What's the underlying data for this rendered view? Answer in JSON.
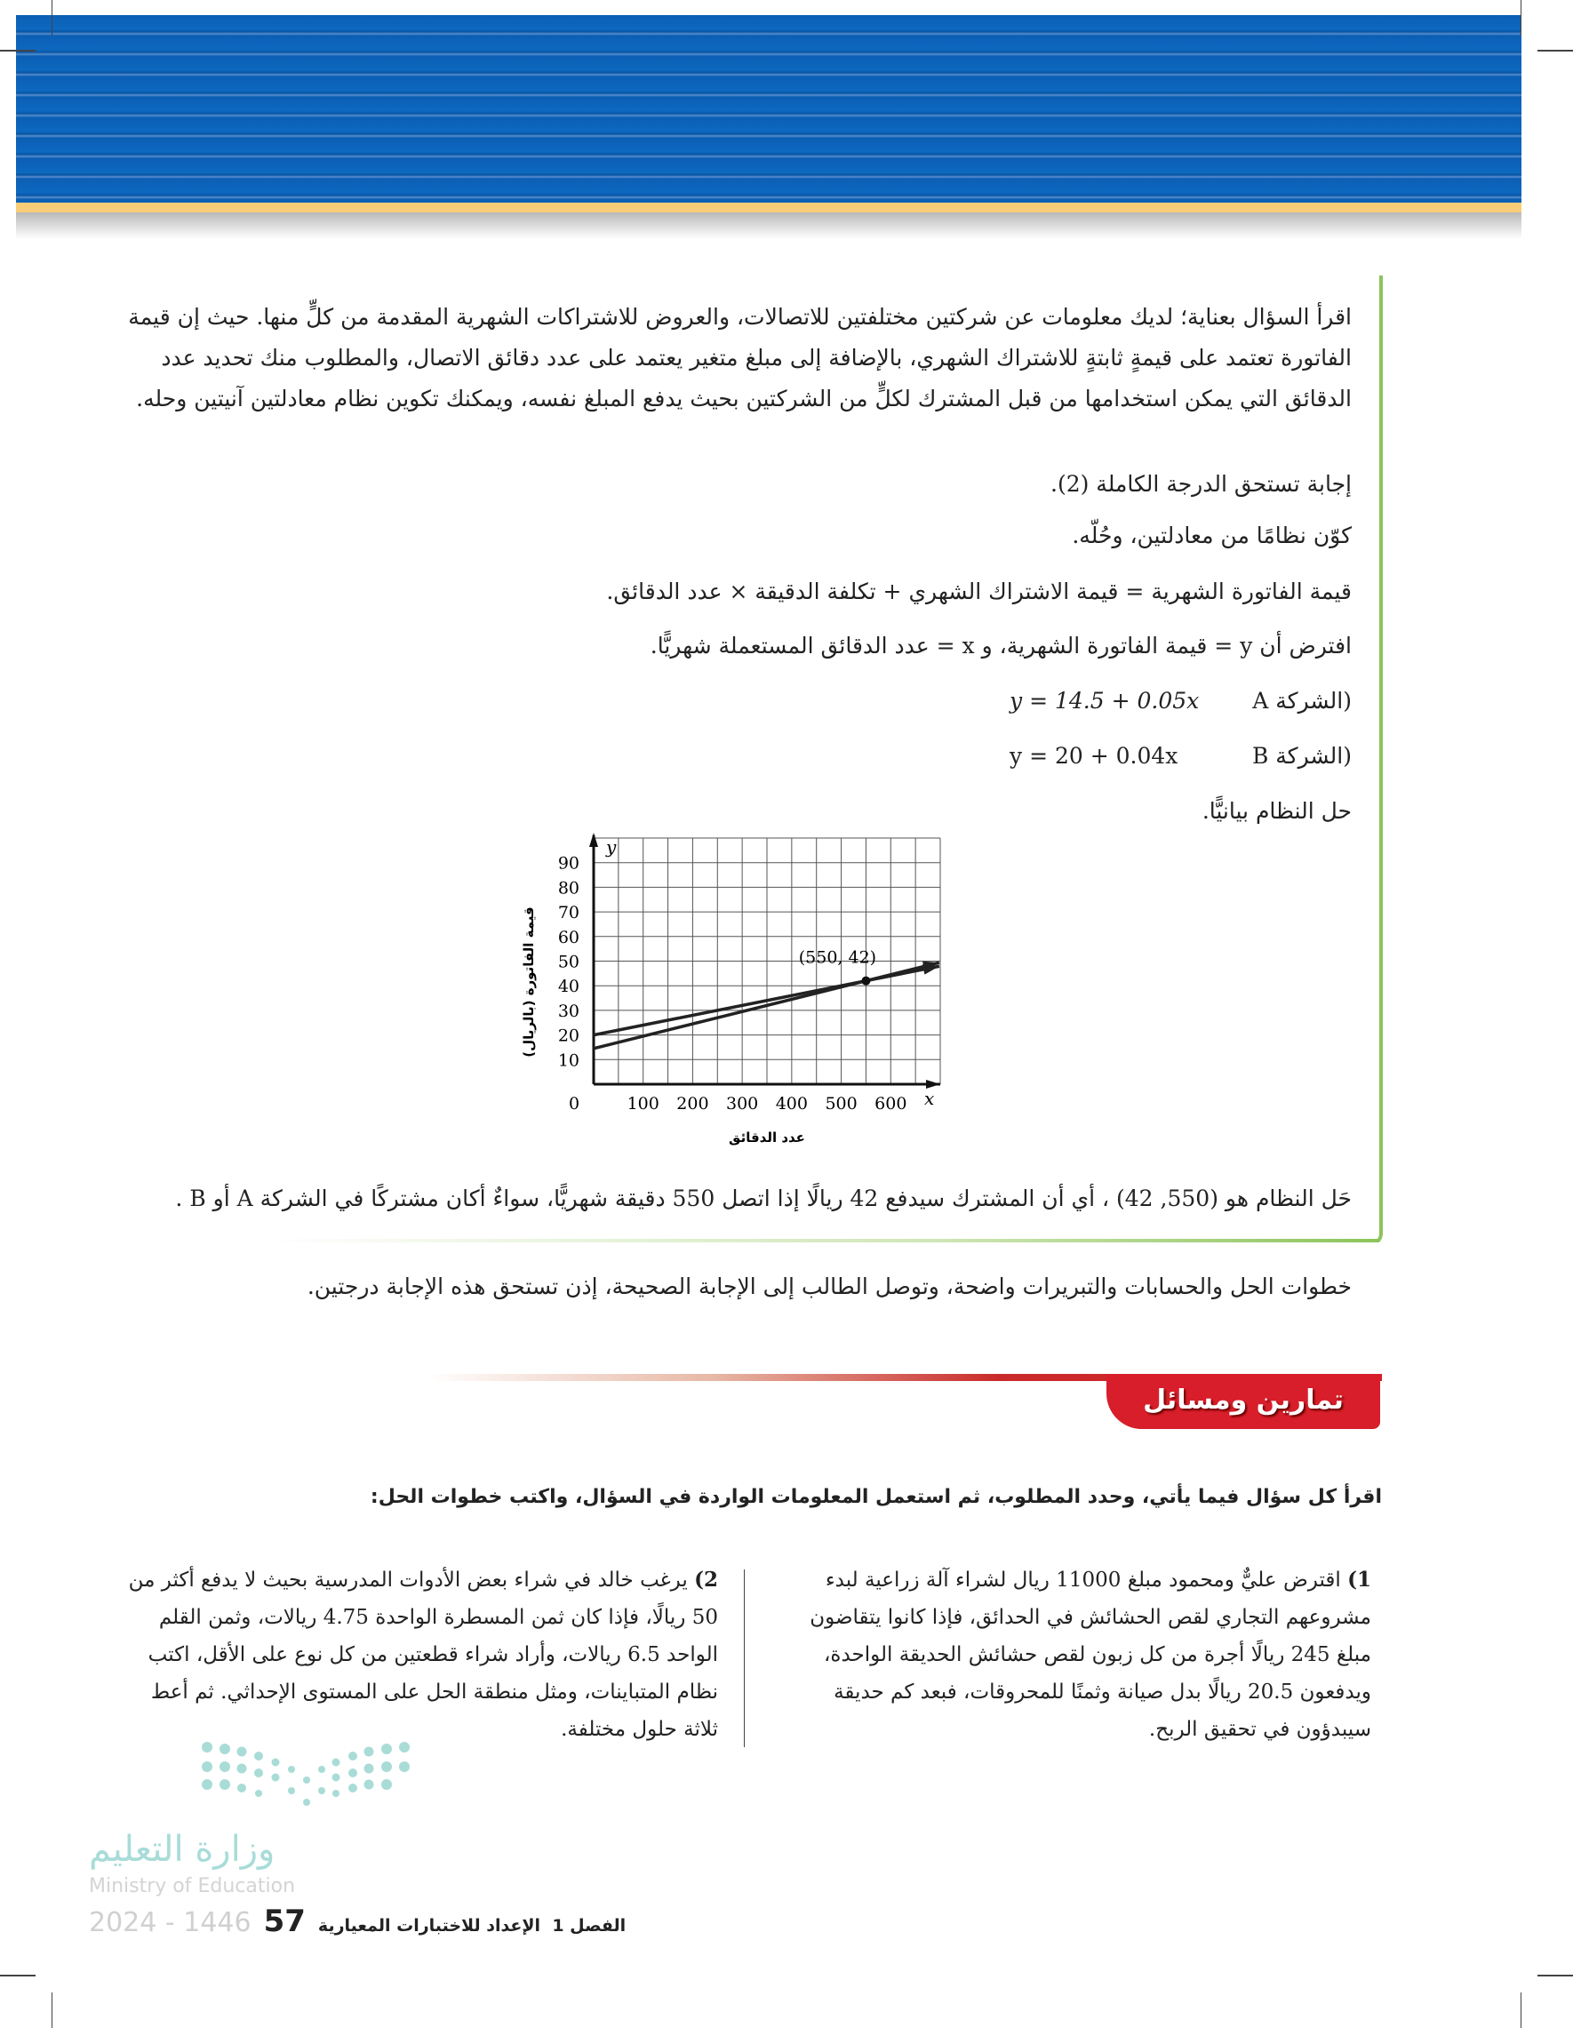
{
  "intro": "اقرأ السؤال بعناية؛ لديك معلومات عن شركتين مختلفتين للاتصالات، والعروض للاشتراكات الشهرية المقدمة من كلٍّ منها. حيث إن قيمة الفاتورة تعتمد على قيمةٍ ثابتةٍ للاشتراك الشهري، بالإضافة إلى مبلغ متغير يعتمد على عدد دقائق الاتصال، والمطلوب منك تحديد عدد الدقائق التي يمكن استخدامها من قبل المشترك لكلٍّ من الشركتين بحيث يدفع المبلغ نفسه، ويمكنك تكوين نظام معادلتين آنيتين وحله.",
  "answer": {
    "grade_line": "إجابة تستحق الدرجة الكاملة (2).",
    "task_line": "كوّن نظامًا من معادلتين، وحُلّه.",
    "formula_line": "قيمة الفاتورة الشهرية = قيمة الاشتراك الشهري + تكلفة الدقيقة × عدد الدقائق.",
    "assume_line": "افترض أن y = قيمة الفاتورة الشهرية، و x = عدد الدقائق المستعملة شهريًّا.",
    "eq_a_label": "(الشركة A",
    "eq_a": "y = 14.5 + 0.05x",
    "eq_b_label": "(الشركة B",
    "eq_b": "y = 20 + 0.04x",
    "graph_line": "حل النظام بيانيًّا.",
    "solution_line": "حَل النظام هو (550, 42) ، أي أن المشترك سيدفع 42 ريالًا إذا اتصل 550 دقيقة شهريًّا، سواءٌ أكان مشتركًا في الشركة A أو B .",
    "comment_line": "خطوات الحل والحسابات والتبريرات واضحة، وتوصل الطالب إلى الإجابة الصحيحة، إذن تستحق هذه الإجابة درجتين."
  },
  "chart_data": {
    "type": "line",
    "xlabel": "عدد الدقائق",
    "ylabel": "قيمة الفاتورة (بالريال)",
    "x_axis_letter": "x",
    "y_axis_letter": "y",
    "xlim": [
      0,
      700
    ],
    "ylim": [
      0,
      100
    ],
    "x_grid_step": 50,
    "y_grid_step": 10,
    "grid": true,
    "x_ticks": [
      "100",
      "200",
      "300",
      "400",
      "500",
      "600"
    ],
    "y_ticks": [
      "10",
      "20",
      "30",
      "40",
      "50",
      "60",
      "70",
      "80",
      "90"
    ],
    "origin_label": "0",
    "series": [
      {
        "equation": "y = 14.5 + 0.05x",
        "intercept": 14.5,
        "slope": 0.05
      },
      {
        "equation": "y = 20 + 0.04x",
        "intercept": 20,
        "slope": 0.04
      }
    ],
    "intersection": {
      "x": 550,
      "y": 42,
      "label": "(550, 42)"
    },
    "line_color": "#222222"
  },
  "exercises": {
    "header": "تمارين ومسائل",
    "header_color": "#d81e2a",
    "instruction": "اقرأ كل سؤال فيما يأتي، وحدد المطلوب، ثم استعمل المعلومات الواردة في السؤال، واكتب خطوات الحل:",
    "items": [
      {
        "number": "1)",
        "text": "اقترض عليٌّ ومحمود مبلغ 11000 ريال لشراء آلة زراعية لبدء مشروعهم التجاري لقص الحشائش في الحدائق، فإذا كانوا يتقاضون مبلغ 245 ريالًا أجرة من كل زبون لقص حشائش الحديقة الواحدة، ويدفعون 20.5 ريالًا بدل صيانة وثمنًا للمحروقات، فبعد كم حديقة سيبدؤون في تحقيق الربح."
      },
      {
        "number": "2)",
        "text": "يرغب خالد في شراء بعض الأدوات المدرسية بحيث لا يدفع أكثر من 50 ريالًا، فإذا كان ثمن المسطرة الواحدة 4.75 ريالات، وثمن القلم الواحد 6.5 ريالات، وأراد شراء قطعتين من كل نوع على الأقل، اكتب نظام المتباينات، ومثل منطقة الحل على المستوى الإحداثي. ثم أعط ثلاثة حلول مختلفة."
      }
    ]
  },
  "logo": {
    "arabic": "وزارة التعليم",
    "english": "Ministry of Education",
    "year": "2024 - 1446"
  },
  "footer": {
    "page_number": "57",
    "chapter": "الفصل 1",
    "chapter_title": "الإعداد للاختبارات المعيارية"
  }
}
